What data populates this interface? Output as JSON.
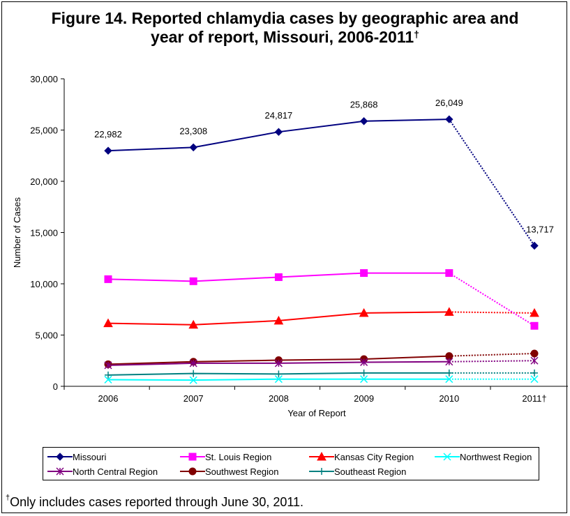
{
  "title_line1": "Figure 14.  Reported chlamydia cases by geographic area and",
  "title_line2": "year of report, Missouri, 2006-2011",
  "title_mark": "†",
  "footnote_mark": "†",
  "footnote_text": "Only includes cases reported through June 30, 2011.",
  "chart_data": {
    "type": "line",
    "categories": [
      "2006",
      "2007",
      "2008",
      "2009",
      "2010",
      "2011†"
    ],
    "xlabel": "Year of Report",
    "ylabel": "Number of Cases",
    "ylim": [
      0,
      30000
    ],
    "yticks": [
      0,
      5000,
      10000,
      15000,
      20000,
      25000,
      30000
    ],
    "ytick_labels": [
      "0",
      "5,000",
      "10,000",
      "15,000",
      "20,000",
      "25,000",
      "30,000"
    ],
    "grid": false,
    "legend_position": "bottom",
    "last_segment_style": "dotted",
    "series": [
      {
        "name": "Missouri",
        "color": "#00007f",
        "marker": "diamond",
        "values": [
          22982,
          23308,
          24817,
          25868,
          26049,
          13717
        ],
        "labels": [
          "22,982",
          "23,308",
          "24,817",
          "25,868",
          "26,049",
          "13,717"
        ]
      },
      {
        "name": "St. Louis Region",
        "color": "#ff00ff",
        "marker": "square",
        "values": [
          10450,
          10250,
          10650,
          11050,
          11050,
          5900
        ]
      },
      {
        "name": "Kansas City Region",
        "color": "#ff0000",
        "marker": "triangle",
        "values": [
          6150,
          6000,
          6400,
          7150,
          7250,
          7150
        ]
      },
      {
        "name": "Northwest Region",
        "color": "#00ffff",
        "marker": "x",
        "values": [
          650,
          600,
          700,
          700,
          700,
          700
        ]
      },
      {
        "name": "North Central Region",
        "color": "#800080",
        "marker": "star",
        "values": [
          2050,
          2250,
          2250,
          2350,
          2400,
          2500
        ]
      },
      {
        "name": "Southwest Region",
        "color": "#800000",
        "marker": "circle",
        "values": [
          2150,
          2400,
          2550,
          2650,
          2950,
          3200
        ]
      },
      {
        "name": "Southeast Region",
        "color": "#008080",
        "marker": "plus",
        "values": [
          1100,
          1250,
          1200,
          1300,
          1300,
          1300
        ]
      }
    ]
  }
}
